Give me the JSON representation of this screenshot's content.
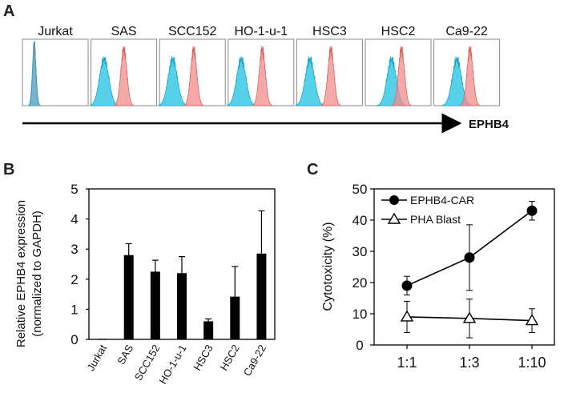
{
  "panel_labels": {
    "a": "A",
    "b": "B",
    "c": "C"
  },
  "colors": {
    "cyan": "#39c9e6",
    "cyan_dark": "#1aa6c8",
    "pink": "#f28b8b",
    "pink_dark": "#d96464",
    "bar": "#000000",
    "frame": "#888888"
  },
  "chart_data": [
    {
      "panel": "A",
      "type": "histogram",
      "xlabel": "EPHB4",
      "panels": [
        {
          "label": "Jurkat",
          "control_peak": 0.18,
          "stain_peak": 0.18,
          "stain_overlaps_control": true
        },
        {
          "label": "SAS",
          "control_peak": 0.2,
          "stain_peak": 0.5
        },
        {
          "label": "SCC152",
          "control_peak": 0.2,
          "stain_peak": 0.52
        },
        {
          "label": "HO-1-u-1",
          "control_peak": 0.2,
          "stain_peak": 0.52
        },
        {
          "label": "HSC3",
          "control_peak": 0.2,
          "stain_peak": 0.52
        },
        {
          "label": "HSC2",
          "control_peak": 0.4,
          "stain_peak": 0.55
        },
        {
          "label": "Ca9-22",
          "control_peak": 0.35,
          "stain_peak": 0.55
        }
      ]
    },
    {
      "panel": "B",
      "type": "bar",
      "ylabel": "Relative EPHB4 expression",
      "ylabel2": "(normalized to GAPDH)",
      "ylim": [
        0,
        5
      ],
      "yticks": [
        "0",
        "1",
        "2",
        "3",
        "4",
        "5"
      ],
      "categories": [
        "Jurkat",
        "SAS",
        "SCC152",
        "HO-1-u-1",
        "HSC3",
        "HSC2",
        "Ca9-22"
      ],
      "values": [
        0.02,
        2.8,
        2.25,
        2.2,
        0.6,
        1.42,
        2.85
      ],
      "errors": [
        0.0,
        0.38,
        0.38,
        0.55,
        0.08,
        1.0,
        1.42
      ]
    },
    {
      "panel": "C",
      "type": "line",
      "ylabel": "Cytotoxicity (%)",
      "ylim": [
        0,
        50
      ],
      "yticks": [
        "0",
        "10",
        "20",
        "30",
        "40",
        "50"
      ],
      "categories": [
        "1:1",
        "1:3",
        "1:10"
      ],
      "legend_position": "top-left",
      "series": [
        {
          "name": "EPHB4-CAR",
          "marker": "filled-circle",
          "values": [
            19,
            28,
            43
          ],
          "errors": [
            3,
            10.5,
            3
          ]
        },
        {
          "name": "PHA Blast",
          "marker": "open-triangle",
          "values": [
            9,
            8.5,
            7.8
          ],
          "errors": [
            5,
            6.2,
            3.8
          ]
        }
      ]
    }
  ]
}
